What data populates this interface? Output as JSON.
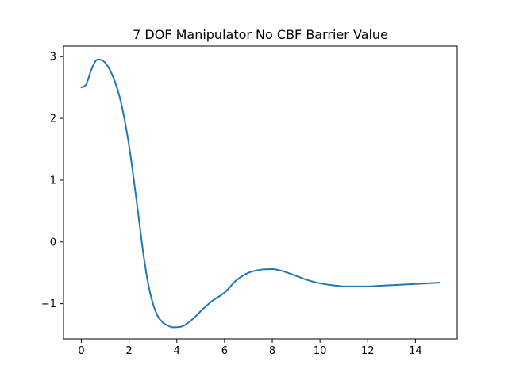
{
  "chart_data": {
    "type": "line",
    "title": "7 DOF Manipulator No CBF Barrier Value",
    "xlabel": "",
    "ylabel": "",
    "xlim": [
      -0.75,
      15.75
    ],
    "ylim": [
      -1.57,
      3.17
    ],
    "grid": false,
    "x_ticks": [
      0,
      2,
      4,
      6,
      8,
      10,
      12,
      14
    ],
    "x_tick_labels": [
      "0",
      "2",
      "4",
      "6",
      "8",
      "10",
      "12",
      "14"
    ],
    "y_ticks": [
      -1,
      0,
      1,
      2,
      3
    ],
    "y_tick_labels": [
      "−1",
      "0",
      "1",
      "2",
      "3"
    ],
    "series": [
      {
        "color": "#1f77b4",
        "x": [
          0,
          0.2,
          0.4,
          0.6,
          0.8,
          1.0,
          1.2,
          1.4,
          1.6,
          1.8,
          2.0,
          2.2,
          2.4,
          2.6,
          2.8,
          3.0,
          3.2,
          3.4,
          3.6,
          3.8,
          4.0,
          4.2,
          4.4,
          4.6,
          4.8,
          5.0,
          5.2,
          5.5,
          6.0,
          6.5,
          7.0,
          7.5,
          8.0,
          8.2,
          8.5,
          9.0,
          9.5,
          10.0,
          10.5,
          11.0,
          11.5,
          12.0,
          12.5,
          13.0,
          13.5,
          14.0,
          14.5,
          15.0
        ],
        "y": [
          2.5,
          2.55,
          2.77,
          2.93,
          2.95,
          2.9,
          2.78,
          2.6,
          2.35,
          2.0,
          1.55,
          1.0,
          0.4,
          -0.2,
          -0.68,
          -1.0,
          -1.2,
          -1.3,
          -1.35,
          -1.38,
          -1.38,
          -1.37,
          -1.33,
          -1.27,
          -1.2,
          -1.12,
          -1.05,
          -0.95,
          -0.82,
          -0.62,
          -0.5,
          -0.45,
          -0.44,
          -0.45,
          -0.48,
          -0.55,
          -0.62,
          -0.67,
          -0.7,
          -0.72,
          -0.72,
          -0.72,
          -0.71,
          -0.7,
          -0.69,
          -0.68,
          -0.67,
          -0.66
        ]
      }
    ]
  }
}
